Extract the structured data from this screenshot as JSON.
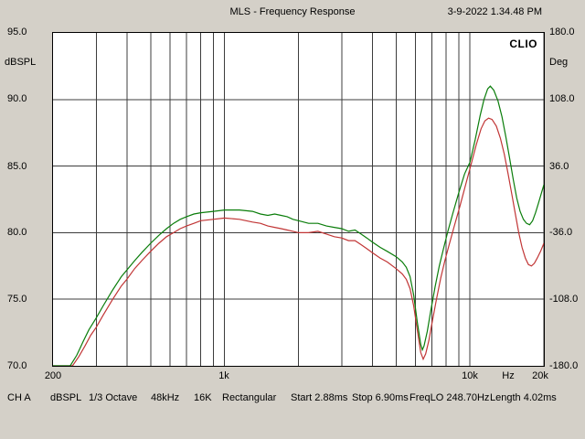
{
  "header": {
    "title": "MLS - Frequency Response",
    "timestamp": "3-9-2022 1.34.48 PM"
  },
  "watermark": "CLIO",
  "axes": {
    "left": {
      "unit": "dBSPL",
      "ticks": [
        "95.0",
        "90.0",
        "85.0",
        "80.0",
        "75.0",
        "70.0"
      ]
    },
    "right": {
      "unit": "Deg",
      "ticks": [
        "180.0",
        "108.0",
        "36.0",
        "-36.0",
        "-108.0",
        "-180.0"
      ]
    },
    "bottom": {
      "ticks": [
        "200",
        "1k",
        "10k",
        "20k"
      ],
      "unit": "Hz"
    }
  },
  "status": {
    "items": [
      "CH A",
      "dBSPL",
      "1/3 Octave",
      "48kHz",
      "16K",
      "Rectangular",
      "Start 2.88ms",
      "Stop 6.90ms",
      "FreqLO 248.70Hz",
      "Length 4.02ms"
    ]
  },
  "chart_data": {
    "type": "line",
    "title": "MLS - Frequency Response",
    "x_scale": "log",
    "xlabel": "Hz",
    "x_range": [
      200,
      20000
    ],
    "y_left": {
      "label": "dBSPL",
      "range": [
        70,
        95
      ],
      "tick_step": 5
    },
    "y_right": {
      "label": "Deg",
      "range": [
        -180,
        180
      ],
      "tick_step": 72
    },
    "grid": true,
    "grid_color": "#3c3c3c",
    "grid_freqs": [
      300,
      400,
      500,
      600,
      700,
      800,
      900,
      1000,
      2000,
      3000,
      4000,
      5000,
      6000,
      7000,
      8000,
      9000,
      10000,
      20000
    ],
    "grid_db": [
      75,
      80,
      85,
      90
    ],
    "series": [
      {
        "name": "response-red",
        "color": "#c13535",
        "unit": "dBSPL",
        "points": [
          [
            200,
            70
          ],
          [
            240,
            70
          ],
          [
            255,
            70.7
          ],
          [
            270,
            71.5
          ],
          [
            285,
            72.3
          ],
          [
            300,
            72.9
          ],
          [
            320,
            73.8
          ],
          [
            350,
            75.0
          ],
          [
            380,
            76.0
          ],
          [
            400,
            76.5
          ],
          [
            430,
            77.3
          ],
          [
            460,
            77.9
          ],
          [
            500,
            78.6
          ],
          [
            540,
            79.2
          ],
          [
            580,
            79.7
          ],
          [
            620,
            80.0
          ],
          [
            660,
            80.3
          ],
          [
            700,
            80.5
          ],
          [
            750,
            80.7
          ],
          [
            800,
            80.9
          ],
          [
            900,
            81.0
          ],
          [
            1000,
            81.1
          ],
          [
            1150,
            81.0
          ],
          [
            1300,
            80.8
          ],
          [
            1400,
            80.7
          ],
          [
            1500,
            80.5
          ],
          [
            1600,
            80.4
          ],
          [
            1700,
            80.3
          ],
          [
            1800,
            80.2
          ],
          [
            1900,
            80.1
          ],
          [
            2000,
            80.0
          ],
          [
            2200,
            80.0
          ],
          [
            2400,
            80.1
          ],
          [
            2600,
            79.9
          ],
          [
            2800,
            79.7
          ],
          [
            3000,
            79.6
          ],
          [
            3200,
            79.4
          ],
          [
            3400,
            79.4
          ],
          [
            3600,
            79.1
          ],
          [
            3800,
            78.8
          ],
          [
            4000,
            78.5
          ],
          [
            4300,
            78.1
          ],
          [
            4600,
            77.8
          ],
          [
            5000,
            77.3
          ],
          [
            5300,
            76.9
          ],
          [
            5500,
            76.5
          ],
          [
            5700,
            75.8
          ],
          [
            5900,
            74.5
          ],
          [
            6100,
            72.7
          ],
          [
            6300,
            71.0
          ],
          [
            6450,
            70.5
          ],
          [
            6600,
            70.9
          ],
          [
            6800,
            71.9
          ],
          [
            7000,
            73.2
          ],
          [
            7300,
            75.0
          ],
          [
            7600,
            76.6
          ],
          [
            7900,
            77.9
          ],
          [
            8200,
            79.0
          ],
          [
            8600,
            80.4
          ],
          [
            9100,
            82.0
          ],
          [
            9600,
            83.6
          ],
          [
            10100,
            85.1
          ],
          [
            10600,
            86.6
          ],
          [
            11100,
            87.8
          ],
          [
            11500,
            88.4
          ],
          [
            11900,
            88.6
          ],
          [
            12300,
            88.5
          ],
          [
            12800,
            88.0
          ],
          [
            13300,
            87.1
          ],
          [
            13800,
            85.9
          ],
          [
            14300,
            84.4
          ],
          [
            14800,
            82.9
          ],
          [
            15300,
            81.4
          ],
          [
            15800,
            80.0
          ],
          [
            16300,
            78.9
          ],
          [
            16800,
            78.1
          ],
          [
            17300,
            77.6
          ],
          [
            17800,
            77.5
          ],
          [
            18300,
            77.7
          ],
          [
            18800,
            78.1
          ],
          [
            19400,
            78.6
          ],
          [
            20000,
            79.2
          ]
        ]
      },
      {
        "name": "response-green",
        "color": "#0a7d0a",
        "unit": "dBSPL",
        "points": [
          [
            200,
            70
          ],
          [
            235,
            70
          ],
          [
            250,
            70.8
          ],
          [
            265,
            71.8
          ],
          [
            280,
            72.7
          ],
          [
            300,
            73.6
          ],
          [
            320,
            74.5
          ],
          [
            350,
            75.7
          ],
          [
            380,
            76.7
          ],
          [
            400,
            77.2
          ],
          [
            430,
            77.9
          ],
          [
            460,
            78.5
          ],
          [
            500,
            79.2
          ],
          [
            540,
            79.8
          ],
          [
            580,
            80.3
          ],
          [
            620,
            80.7
          ],
          [
            660,
            81.0
          ],
          [
            700,
            81.2
          ],
          [
            750,
            81.4
          ],
          [
            800,
            81.5
          ],
          [
            900,
            81.6
          ],
          [
            1000,
            81.7
          ],
          [
            1150,
            81.7
          ],
          [
            1300,
            81.6
          ],
          [
            1400,
            81.4
          ],
          [
            1500,
            81.3
          ],
          [
            1600,
            81.4
          ],
          [
            1700,
            81.3
          ],
          [
            1800,
            81.2
          ],
          [
            1900,
            81.0
          ],
          [
            2000,
            80.9
          ],
          [
            2200,
            80.7
          ],
          [
            2400,
            80.7
          ],
          [
            2600,
            80.5
          ],
          [
            2800,
            80.4
          ],
          [
            3000,
            80.3
          ],
          [
            3200,
            80.1
          ],
          [
            3400,
            80.2
          ],
          [
            3600,
            79.9
          ],
          [
            3800,
            79.6
          ],
          [
            4000,
            79.3
          ],
          [
            4300,
            78.9
          ],
          [
            4600,
            78.6
          ],
          [
            5000,
            78.2
          ],
          [
            5300,
            77.8
          ],
          [
            5500,
            77.4
          ],
          [
            5700,
            76.7
          ],
          [
            5900,
            75.3
          ],
          [
            6100,
            73.3
          ],
          [
            6300,
            71.6
          ],
          [
            6400,
            71.2
          ],
          [
            6500,
            71.5
          ],
          [
            6700,
            72.6
          ],
          [
            6900,
            74.0
          ],
          [
            7200,
            75.9
          ],
          [
            7500,
            77.5
          ],
          [
            7800,
            78.8
          ],
          [
            8100,
            80.0
          ],
          [
            8500,
            81.4
          ],
          [
            9000,
            83.0
          ],
          [
            9500,
            84.4
          ],
          [
            10000,
            85.3
          ],
          [
            10500,
            87.0
          ],
          [
            11000,
            88.8
          ],
          [
            11400,
            90.0
          ],
          [
            11800,
            90.8
          ],
          [
            12100,
            91.0
          ],
          [
            12500,
            90.7
          ],
          [
            13000,
            89.9
          ],
          [
            13500,
            88.7
          ],
          [
            14000,
            87.2
          ],
          [
            14500,
            85.6
          ],
          [
            15000,
            84.0
          ],
          [
            15500,
            82.6
          ],
          [
            16000,
            81.6
          ],
          [
            16500,
            81.0
          ],
          [
            17000,
            80.7
          ],
          [
            17500,
            80.6
          ],
          [
            18000,
            80.9
          ],
          [
            18500,
            81.5
          ],
          [
            19000,
            82.2
          ],
          [
            19500,
            82.9
          ],
          [
            20000,
            83.6
          ]
        ]
      }
    ]
  }
}
